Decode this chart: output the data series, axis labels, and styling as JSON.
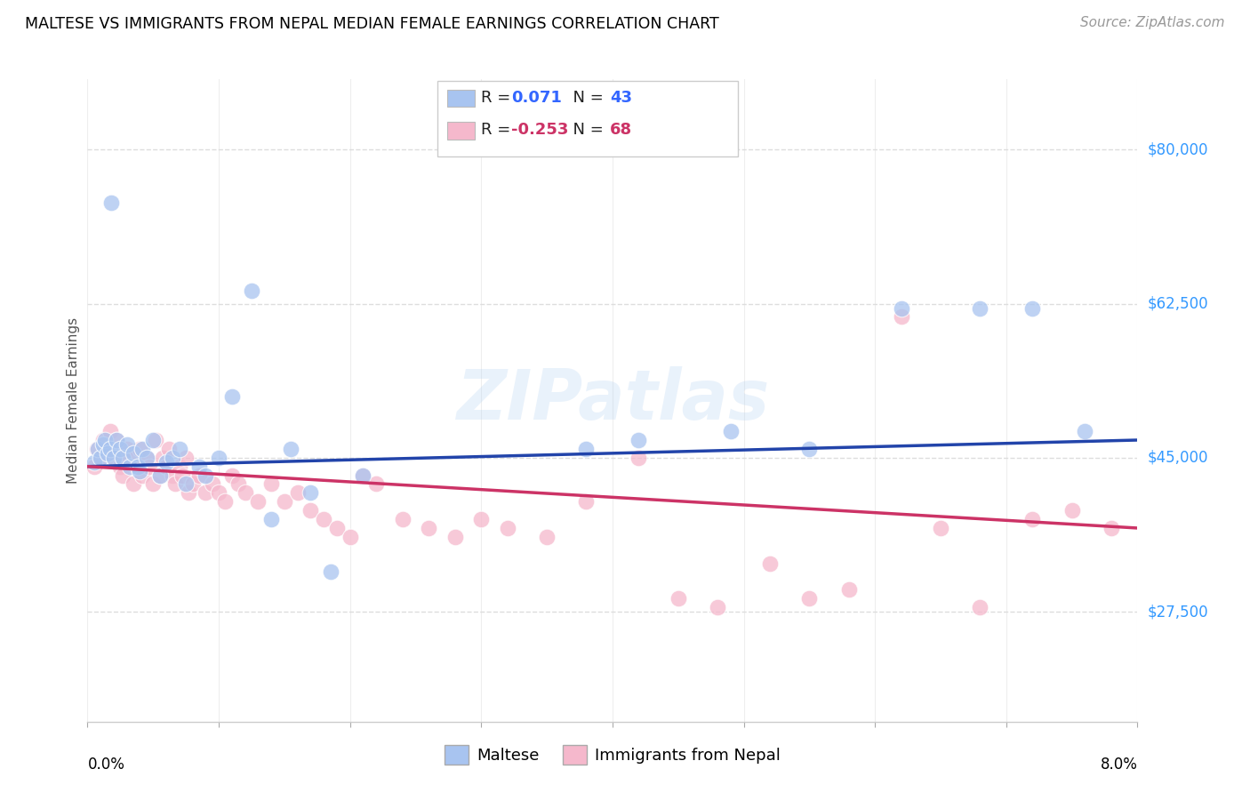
{
  "title": "MALTESE VS IMMIGRANTS FROM NEPAL MEDIAN FEMALE EARNINGS CORRELATION CHART",
  "source": "Source: ZipAtlas.com",
  "ylabel": "Median Female Earnings",
  "xmin": 0.0,
  "xmax": 8.0,
  "ymin": 15000,
  "ymax": 88000,
  "series1_label": "Maltese",
  "series1_R": "0.071",
  "series1_N": "43",
  "series1_color": "#a8c4f0",
  "series1_line_color": "#2244aa",
  "series2_label": "Immigrants from Nepal",
  "series2_R": "-0.253",
  "series2_N": "68",
  "series2_color": "#f5b8cc",
  "series2_line_color": "#cc3366",
  "watermark": "ZIPatlas",
  "ytick_vals": [
    27500,
    45000,
    62500,
    80000
  ],
  "ytick_labels": [
    "$27,500",
    "$45,000",
    "$62,500",
    "$80,000"
  ],
  "maltese_x": [
    0.05,
    0.08,
    0.1,
    0.12,
    0.13,
    0.15,
    0.17,
    0.18,
    0.2,
    0.22,
    0.25,
    0.27,
    0.3,
    0.32,
    0.35,
    0.38,
    0.4,
    0.42,
    0.45,
    0.5,
    0.55,
    0.6,
    0.65,
    0.7,
    0.75,
    0.85,
    0.9,
    1.0,
    1.1,
    1.25,
    1.4,
    1.55,
    1.7,
    1.85,
    2.1,
    3.8,
    4.2,
    4.9,
    5.5,
    6.2,
    6.8,
    7.2,
    7.6
  ],
  "maltese_y": [
    44500,
    46000,
    45000,
    46500,
    47000,
    45500,
    46000,
    74000,
    45000,
    47000,
    46000,
    45000,
    46500,
    44000,
    45500,
    44000,
    43500,
    46000,
    45000,
    47000,
    43000,
    44500,
    45000,
    46000,
    42000,
    44000,
    43000,
    45000,
    52000,
    64000,
    38000,
    46000,
    41000,
    32000,
    43000,
    46000,
    47000,
    48000,
    46000,
    62000,
    62000,
    62000,
    48000
  ],
  "nepal_x": [
    0.05,
    0.07,
    0.1,
    0.12,
    0.15,
    0.17,
    0.2,
    0.22,
    0.25,
    0.27,
    0.3,
    0.32,
    0.35,
    0.37,
    0.4,
    0.42,
    0.45,
    0.47,
    0.5,
    0.52,
    0.55,
    0.57,
    0.6,
    0.62,
    0.65,
    0.67,
    0.7,
    0.72,
    0.75,
    0.77,
    0.8,
    0.85,
    0.9,
    0.95,
    1.0,
    1.05,
    1.1,
    1.15,
    1.2,
    1.3,
    1.4,
    1.5,
    1.6,
    1.7,
    1.8,
    1.9,
    2.0,
    2.1,
    2.2,
    2.4,
    2.6,
    2.8,
    3.0,
    3.2,
    3.5,
    3.8,
    4.2,
    4.5,
    4.8,
    5.2,
    5.5,
    5.8,
    6.2,
    6.5,
    6.8,
    7.2,
    7.5,
    7.8
  ],
  "nepal_y": [
    44000,
    46000,
    45000,
    47000,
    46000,
    48000,
    45000,
    47000,
    44000,
    43000,
    46000,
    45000,
    42000,
    44000,
    46000,
    43000,
    45000,
    44000,
    42000,
    47000,
    43000,
    45000,
    44000,
    46000,
    43000,
    42000,
    44000,
    43000,
    45000,
    41000,
    42000,
    43000,
    41000,
    42000,
    41000,
    40000,
    43000,
    42000,
    41000,
    40000,
    42000,
    40000,
    41000,
    39000,
    38000,
    37000,
    36000,
    43000,
    42000,
    38000,
    37000,
    36000,
    38000,
    37000,
    36000,
    40000,
    45000,
    29000,
    28000,
    33000,
    29000,
    30000,
    61000,
    37000,
    28000,
    38000,
    39000,
    37000
  ]
}
